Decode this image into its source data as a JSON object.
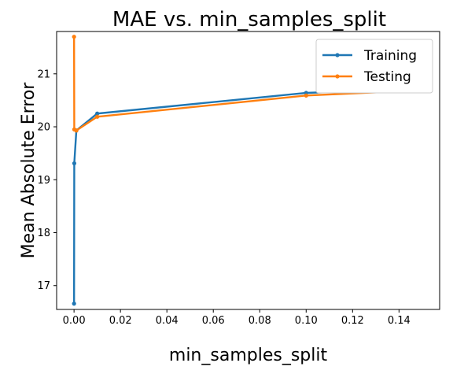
{
  "chart_data": {
    "type": "line",
    "title": "MAE vs. min_samples_split",
    "xlabel": "min_samples_split",
    "ylabel": "Mean Absolute Error",
    "xlim": [
      -0.0075,
      0.1575
    ],
    "ylim": [
      16.55,
      21.8
    ],
    "xticks": [
      0.0,
      0.02,
      0.04,
      0.06,
      0.08,
      0.1,
      0.12,
      0.14
    ],
    "xtick_labels": [
      "0.00",
      "0.02",
      "0.04",
      "0.06",
      "0.08",
      "0.10",
      "0.12",
      "0.14"
    ],
    "yticks": [
      17,
      18,
      19,
      20,
      21
    ],
    "ytick_labels": [
      "17",
      "18",
      "19",
      "20",
      "21"
    ],
    "grid": false,
    "legend_position": "upper right",
    "x": [
      1e-05,
      0.0001,
      0.001,
      0.01,
      0.1,
      0.15
    ],
    "series": [
      {
        "name": "Training",
        "color": "#1f77b4",
        "values": [
          16.66,
          19.31,
          19.93,
          20.25,
          20.64,
          20.72
        ]
      },
      {
        "name": "Testing",
        "color": "#ff7f0e",
        "values": [
          21.7,
          19.95,
          19.93,
          20.19,
          20.59,
          20.69
        ]
      }
    ]
  }
}
